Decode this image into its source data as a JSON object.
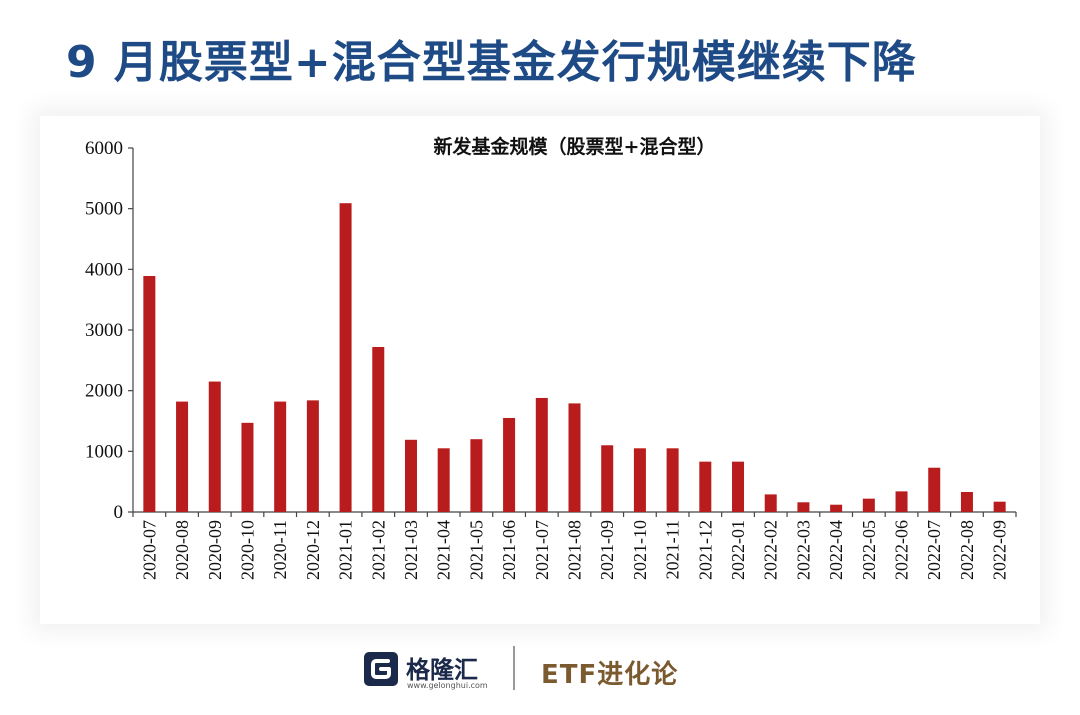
{
  "headline": "9 月股票型+混合型基金发行规模继续下降",
  "chart_data": {
    "type": "bar",
    "title": "新发基金规模（股票型+混合型）",
    "xlabel": "",
    "ylabel": "",
    "ylim": [
      0,
      6000
    ],
    "yticks": [
      0,
      1000,
      2000,
      3000,
      4000,
      5000,
      6000
    ],
    "bar_color": "#b81c1c",
    "categories": [
      "2020-07",
      "2020-08",
      "2020-09",
      "2020-10",
      "2020-11",
      "2020-12",
      "2021-01",
      "2021-02",
      "2021-03",
      "2021-04",
      "2021-05",
      "2021-06",
      "2021-07",
      "2021-08",
      "2021-09",
      "2021-10",
      "2021-11",
      "2021-12",
      "2022-01",
      "2022-02",
      "2022-03",
      "2022-04",
      "2022-05",
      "2022-06",
      "2022-07",
      "2022-08",
      "2022-09"
    ],
    "values": [
      3890,
      1820,
      2150,
      1470,
      1820,
      1840,
      5090,
      2720,
      1190,
      1050,
      1200,
      1550,
      1880,
      1790,
      1100,
      1050,
      1050,
      830,
      830,
      290,
      160,
      120,
      220,
      340,
      730,
      330,
      170
    ],
    "grid": false,
    "legend": "none"
  },
  "footer": {
    "logo_name": "格隆汇",
    "logo_url": "www.gelonghui.com",
    "brand": "ETF进化论",
    "logo_color": "#1b2a4a"
  }
}
